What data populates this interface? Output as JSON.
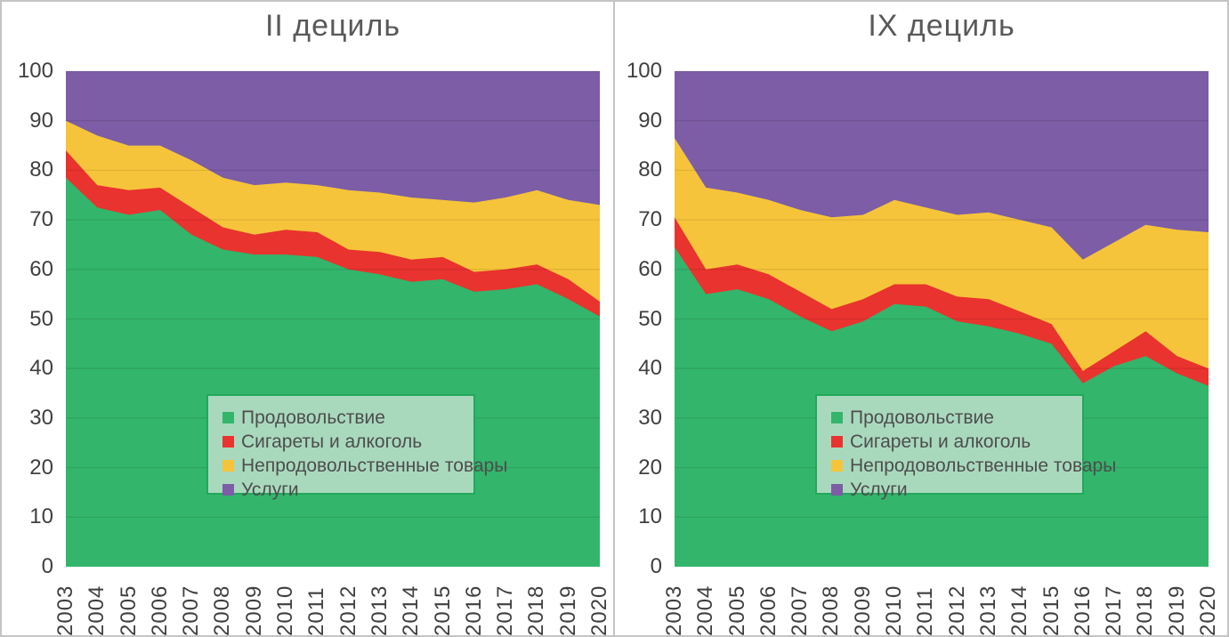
{
  "figure": {
    "background": "#ffffff",
    "border_color": "#c4c4c4",
    "title_color": "#595959",
    "axis_label_color": "#3f3f3f",
    "gridline_overlay": "rgba(0,0,0,0.09)",
    "legend_background": "#a9d9bd",
    "legend_border": "#21a85a",
    "legend_text_color": "#4d4d4d"
  },
  "chart_data": [
    {
      "type": "area",
      "stacked": true,
      "title": "II дециль",
      "categories": [
        "2003",
        "2004",
        "2005",
        "2006",
        "2007",
        "2008",
        "2009",
        "2010",
        "2011",
        "2012",
        "2013",
        "2014",
        "2015",
        "2016",
        "2017",
        "2018",
        "2019",
        "2020"
      ],
      "series": [
        {
          "name": "Продовольствие",
          "color": "#33b56c",
          "values": [
            78.5,
            72.5,
            71,
            72,
            67,
            64,
            63,
            63,
            62.5,
            60,
            59,
            57.5,
            58,
            55.5,
            56,
            57,
            54,
            50.5
          ]
        },
        {
          "name": "Сигареты и алкоголь",
          "color": "#e9332e",
          "values": [
            5.5,
            4.5,
            5,
            4.5,
            5.5,
            4.5,
            4,
            5,
            5,
            4,
            4.5,
            4.5,
            4.5,
            4,
            4,
            4,
            4,
            3
          ]
        },
        {
          "name": "Непродовольственные товары",
          "color": "#f6c43a",
          "values": [
            6,
            10,
            9,
            8.5,
            9.5,
            10,
            10,
            9.5,
            9.5,
            12,
            12,
            12.5,
            11.5,
            14,
            14.5,
            15,
            16,
            19.5
          ]
        },
        {
          "name": "Услуги",
          "color": "#7c5da6",
          "values": [
            10,
            13,
            15,
            15,
            18,
            21.5,
            23,
            22.5,
            23,
            24,
            24.5,
            25.5,
            26,
            26.5,
            25.5,
            24,
            26,
            27
          ]
        }
      ],
      "ylim": [
        0,
        100
      ],
      "yticks": [
        0,
        10,
        20,
        30,
        40,
        50,
        60,
        70,
        80,
        90,
        100
      ],
      "grid": true,
      "legend_position": "inside-center-left"
    },
    {
      "type": "area",
      "stacked": true,
      "title": "IX дециль",
      "categories": [
        "2003",
        "2004",
        "2005",
        "2006",
        "2007",
        "2008",
        "2009",
        "2010",
        "2011",
        "2012",
        "2013",
        "2014",
        "2015",
        "2016",
        "2017",
        "2018",
        "2019",
        "2020"
      ],
      "series": [
        {
          "name": "Продовольствие",
          "color": "#33b56c",
          "values": [
            64.5,
            55,
            56,
            54,
            50.5,
            47.5,
            49.5,
            53,
            52.5,
            49.5,
            48.5,
            47,
            45,
            37,
            40.5,
            42.5,
            39,
            36.5
          ]
        },
        {
          "name": "Сигареты и алкоголь",
          "color": "#e9332e",
          "values": [
            6,
            5,
            5,
            5,
            5,
            4.5,
            4.5,
            4,
            4.5,
            5,
            5.5,
            4.5,
            4,
            2.5,
            3,
            5,
            3.5,
            3.5
          ]
        },
        {
          "name": "Непродовольственные товары",
          "color": "#f6c43a",
          "values": [
            16,
            16.5,
            14.5,
            15,
            16.5,
            18.5,
            17,
            17,
            15.5,
            16.5,
            17.5,
            18.5,
            19.5,
            22.5,
            22,
            21.5,
            25.5,
            27.5
          ]
        },
        {
          "name": "Услуги",
          "color": "#7c5da6",
          "values": [
            13.5,
            23.5,
            24.5,
            26,
            28,
            29.5,
            29,
            26,
            27.5,
            29,
            28.5,
            30,
            31.5,
            38,
            34.5,
            31,
            32,
            32.5
          ]
        }
      ],
      "ylim": [
        0,
        100
      ],
      "yticks": [
        0,
        10,
        20,
        30,
        40,
        50,
        60,
        70,
        80,
        90,
        100
      ],
      "grid": true,
      "legend_position": "inside-center-left"
    }
  ]
}
